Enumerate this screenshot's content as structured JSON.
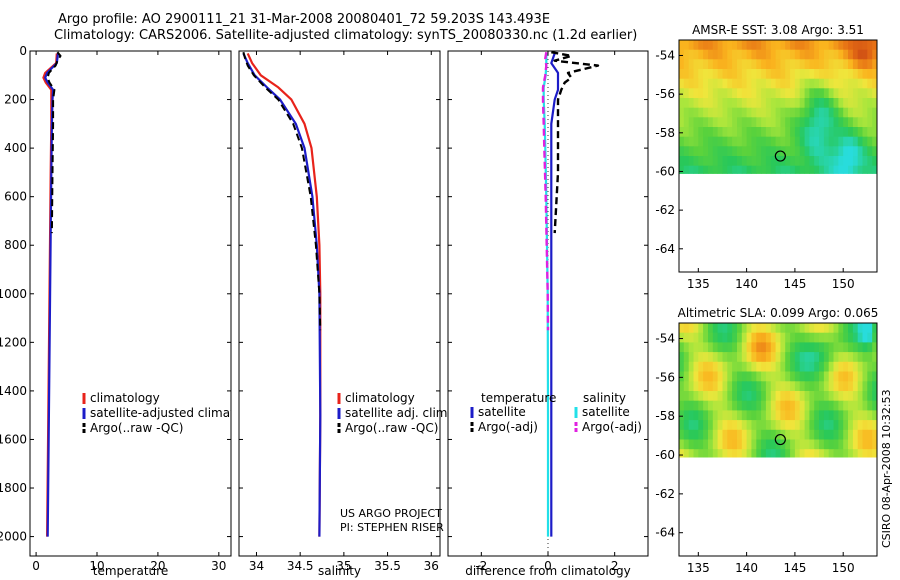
{
  "title": {
    "line1": "Argo profile: AO 2900111_21 31-Mar-2008 20080401_72 59.203S 143.493E",
    "line2": "Climatology: CARS2006. Satellite-adjusted climatology: synTS_20080330.nc (1.2d earlier)"
  },
  "colors": {
    "climatology": "#e8231b",
    "satellite": "#1c1cc8",
    "argo": "#000000",
    "satellite_sal_diff": "#22e0e8",
    "argo_sal_diff": "#e020e0"
  },
  "side_text": "CSIRO 08-Apr-2008 10:32:53",
  "credits": {
    "line1": "US ARGO PROJECT",
    "line2": "PI: STEPHEN RISER"
  },
  "chart_data": [
    {
      "type": "line",
      "panel": "temperature",
      "xlabel": "temperature",
      "xlim": [
        -1,
        32
      ],
      "ylim": [
        0,
        2080
      ],
      "xticks": [
        "0",
        "10",
        "20",
        "30"
      ],
      "xtick_values": [
        0,
        10,
        20,
        30
      ],
      "yticks": [
        "0",
        "200",
        "400",
        "600",
        "800",
        "1000",
        "1200",
        "1400",
        "1600",
        "1800",
        "2000"
      ],
      "ytick_values": [
        0,
        200,
        400,
        600,
        800,
        1000,
        1200,
        1400,
        1600,
        1800,
        2000
      ],
      "legend": [
        "climatology",
        "satellite-adjusted climatology",
        "Argo(..raw -QC)"
      ],
      "series": [
        {
          "name": "climatology",
          "depth": [
            10,
            50,
            90,
            110,
            130,
            160,
            200,
            300,
            500,
            1000,
            1500,
            2000
          ],
          "values": [
            3.4,
            3.3,
            1.5,
            1.2,
            1.6,
            2.5,
            2.5,
            2.5,
            2.4,
            2.2,
            2.0,
            1.8
          ]
        },
        {
          "name": "satellite-adjusted climatology",
          "depth": [
            10,
            50,
            90,
            110,
            130,
            160,
            200,
            300,
            500,
            1000,
            1500,
            2000
          ],
          "values": [
            3.6,
            3.4,
            1.8,
            1.5,
            1.9,
            2.8,
            2.7,
            2.6,
            2.5,
            2.3,
            2.1,
            1.9
          ]
        },
        {
          "name": "Argo(..raw -QC)",
          "depth": [
            5,
            20,
            40,
            60,
            90,
            110,
            130,
            160,
            200,
            300,
            500,
            750
          ],
          "values": [
            3.5,
            4.0,
            3.5,
            3.2,
            2.1,
            1.9,
            2.2,
            3.0,
            2.8,
            2.8,
            2.7,
            2.6
          ]
        }
      ]
    },
    {
      "type": "line",
      "panel": "salinity",
      "xlabel": "salinity",
      "xlim": [
        33.8,
        36.1
      ],
      "ylim": [
        0,
        2080
      ],
      "xticks": [
        "34",
        "34.5",
        "35",
        "35.5",
        "36"
      ],
      "xtick_values": [
        34,
        34.5,
        35,
        35.5,
        36
      ],
      "legend": [
        "climatology",
        "satellite adj. clim.",
        "Argo(..raw -QC)"
      ],
      "credits": true,
      "series": [
        {
          "name": "climatology",
          "depth": [
            10,
            50,
            100,
            150,
            200,
            300,
            400,
            600,
            800,
            1000,
            1500,
            2000
          ],
          "values": [
            33.9,
            33.95,
            34.05,
            34.25,
            34.4,
            34.55,
            34.63,
            34.69,
            34.72,
            34.73,
            34.73,
            34.72
          ]
        },
        {
          "name": "satellite adj. clim.",
          "depth": [
            10,
            50,
            100,
            150,
            200,
            300,
            400,
            600,
            800,
            1000,
            1500,
            2000
          ],
          "values": [
            33.85,
            33.9,
            33.98,
            34.12,
            34.27,
            34.45,
            34.55,
            34.64,
            34.69,
            34.72,
            34.73,
            34.72
          ]
        },
        {
          "name": "Argo(..raw -QC)",
          "depth": [
            5,
            30,
            60,
            100,
            150,
            200,
            300,
            400,
            600,
            800,
            1000,
            1150
          ],
          "values": [
            33.85,
            33.87,
            33.9,
            33.97,
            34.1,
            34.25,
            34.42,
            34.52,
            34.62,
            34.68,
            34.72,
            34.73
          ]
        }
      ]
    },
    {
      "type": "line",
      "panel": "difference",
      "xlabel": "difference from climatology",
      "xlim": [
        -3,
        3
      ],
      "ylim": [
        0,
        2080
      ],
      "xticks": [
        "-2",
        "0",
        "2"
      ],
      "xtick_values": [
        -2,
        0,
        2
      ],
      "legend_groups": [
        {
          "header": "temperature",
          "items": [
            "satellite",
            "Argo(-adj)"
          ]
        },
        {
          "header": "salinity",
          "items": [
            "satellite",
            "Argo(-adj)"
          ]
        }
      ],
      "series": [
        {
          "name": "temperature satellite",
          "depth": [
            10,
            50,
            90,
            110,
            130,
            160,
            200,
            300,
            500,
            1000,
            1500,
            2000
          ],
          "values": [
            0.2,
            0.1,
            0.3,
            0.3,
            0.3,
            0.3,
            0.2,
            0.1,
            0.1,
            0.1,
            0.1,
            0.1
          ]
        },
        {
          "name": "temperature Argo(-adj)",
          "depth": [
            5,
            20,
            40,
            60,
            90,
            110,
            130,
            160,
            200,
            300,
            500,
            750
          ],
          "values": [
            0.1,
            0.7,
            0.2,
            1.5,
            0.6,
            0.7,
            0.5,
            0.4,
            0.3,
            0.3,
            0.3,
            0.2
          ]
        },
        {
          "name": "salinity satellite",
          "depth": [
            10,
            50,
            100,
            150,
            200,
            300,
            400,
            600,
            800,
            1000,
            1500,
            2000
          ],
          "values": [
            -0.05,
            -0.05,
            -0.07,
            -0.13,
            -0.13,
            -0.1,
            -0.08,
            -0.05,
            -0.03,
            -0.01,
            0,
            0
          ]
        },
        {
          "name": "salinity Argo(-adj)",
          "depth": [
            5,
            30,
            60,
            100,
            150,
            200,
            300,
            400,
            600,
            800,
            1000,
            1150
          ],
          "values": [
            -0.05,
            -0.08,
            -0.05,
            -0.08,
            -0.15,
            -0.15,
            -0.13,
            -0.11,
            -0.07,
            -0.04,
            -0.01,
            0
          ]
        }
      ]
    },
    {
      "type": "heatmap",
      "panel": "sst_map",
      "title": "AMSR-E SST: 3.08 Argo: 3.51",
      "xlim": [
        133,
        153.5
      ],
      "ylim": [
        -65.2,
        -53.2
      ],
      "xticks": [
        "135",
        "140",
        "145",
        "150"
      ],
      "xtick_values": [
        135,
        140,
        145,
        150
      ],
      "yticks": [
        "-54",
        "-56",
        "-58",
        "-60",
        "-62",
        "-64"
      ],
      "ytick_values": [
        -54,
        -56,
        -58,
        -60,
        -62,
        -64
      ],
      "data_lat_range": [
        -60.1,
        -53.2
      ],
      "float_position": {
        "lon": 143.493,
        "lat": -59.203
      }
    },
    {
      "type": "heatmap",
      "panel": "sla_map",
      "title": "Altimetric SLA: 0.099 Argo: 0.065",
      "xlim": [
        133,
        153.5
      ],
      "ylim": [
        -65.2,
        -53.2
      ],
      "xticks": [
        "135",
        "140",
        "145",
        "150"
      ],
      "xtick_values": [
        135,
        140,
        145,
        150
      ],
      "yticks": [
        "-54",
        "-56",
        "-58",
        "-60",
        "-62",
        "-64"
      ],
      "ytick_values": [
        -54,
        -56,
        -58,
        -60,
        -62,
        -64
      ],
      "data_lat_range": [
        -60.1,
        -53.2
      ],
      "float_position": {
        "lon": 143.493,
        "lat": -59.203
      }
    }
  ]
}
